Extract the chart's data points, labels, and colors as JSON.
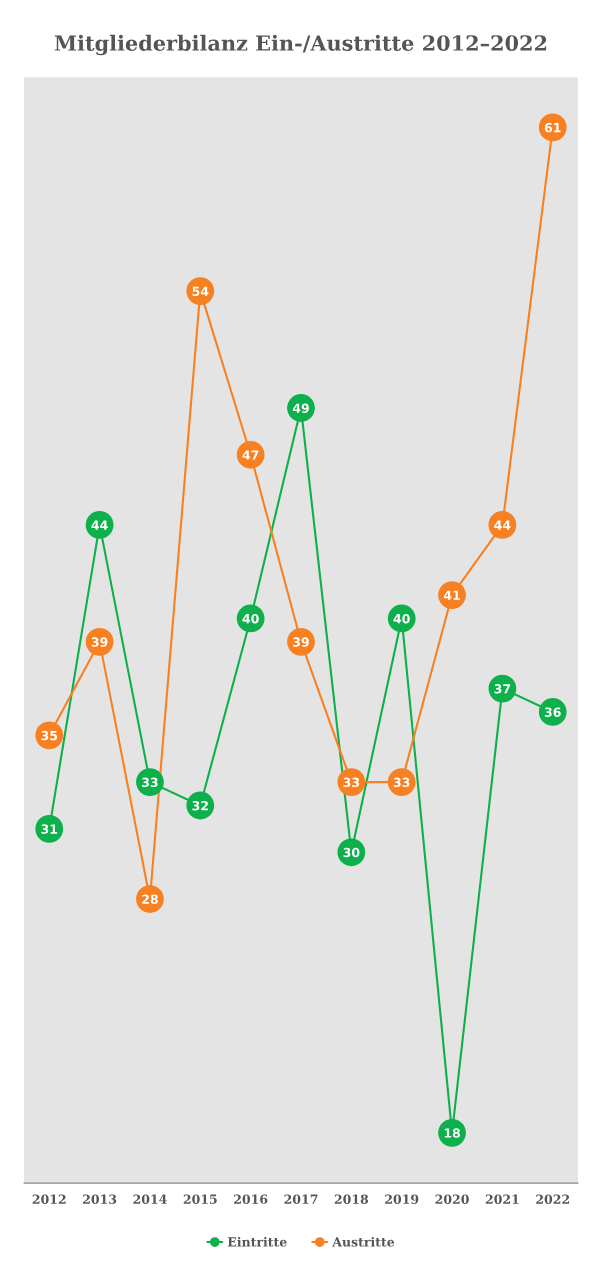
{
  "chart_data": {
    "type": "line",
    "title": "Mitgliederbilanz Ein-/Austritte 2012–2022",
    "categories": [
      "2012",
      "2013",
      "2014",
      "2015",
      "2016",
      "2017",
      "2018",
      "2019",
      "2020",
      "2021",
      "2022"
    ],
    "series": [
      {
        "name": "Eintritte",
        "color": "#0db04b",
        "values": [
          31,
          44,
          33,
          32,
          40,
          49,
          30,
          40,
          18,
          37,
          36
        ]
      },
      {
        "name": "Austritte",
        "color": "#f78022",
        "values": [
          35,
          39,
          28,
          54,
          47,
          39,
          33,
          33,
          41,
          44,
          61
        ]
      }
    ],
    "legend": "bottom",
    "marker": "circle",
    "line_style": "solid",
    "data_labels": true,
    "tick_labels": "x"
  }
}
